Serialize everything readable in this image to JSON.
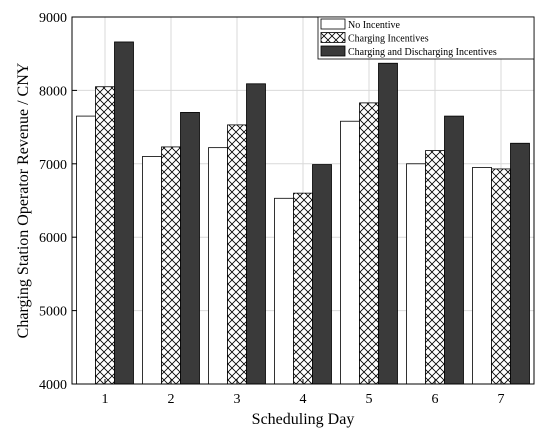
{
  "chart_data": {
    "type": "bar",
    "title": "",
    "xlabel": "Scheduling Day",
    "ylabel": "Charging Station Operator Revenue / CNY",
    "categories": [
      "1",
      "2",
      "3",
      "4",
      "5",
      "6",
      "7"
    ],
    "ylim": [
      4000,
      9000
    ],
    "yticks": [
      4000,
      5000,
      6000,
      7000,
      8000,
      9000
    ],
    "ytick_labels": [
      "4000",
      "5000",
      "6000",
      "7000",
      "8000",
      "9000"
    ],
    "grid": true,
    "legend_position": "top-right",
    "series": [
      {
        "name": "No Incentive",
        "fill": "#ffffff",
        "pattern": "none",
        "values": [
          7650,
          7100,
          7220,
          6530,
          7580,
          7000,
          6950
        ]
      },
      {
        "name": "Charging Incentives",
        "fill": "#ffffff",
        "pattern": "crosshatch",
        "values": [
          8050,
          7230,
          7530,
          6600,
          7830,
          7180,
          6930
        ]
      },
      {
        "name": "Charging and Discharging Incentives",
        "fill": "#3a3a3a",
        "pattern": "none",
        "values": [
          8660,
          7700,
          8090,
          6990,
          8370,
          7650,
          7280
        ]
      }
    ]
  }
}
